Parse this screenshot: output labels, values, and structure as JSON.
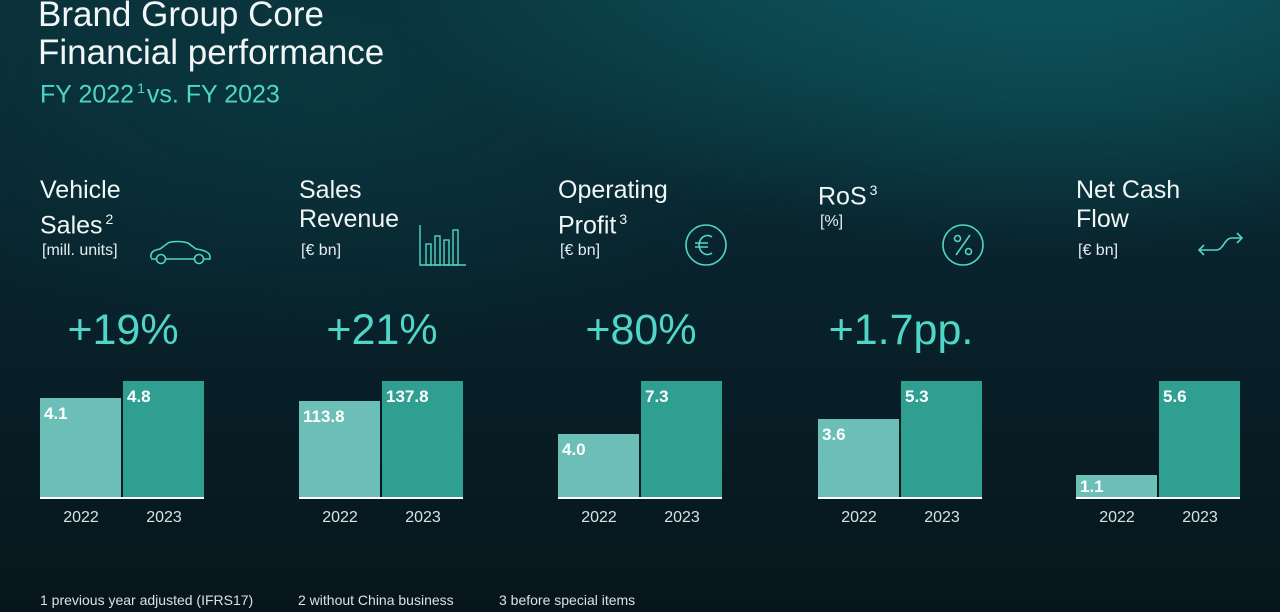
{
  "header": {
    "title_line1": "Brand Group Core",
    "title_line2": "Financial performance",
    "subtitle_prefix": "FY 2022",
    "subtitle_footnote": "1",
    "subtitle_suffix": "vs. FY 2023"
  },
  "chart_data": [
    {
      "type": "bar",
      "title": "Vehicle Sales",
      "title_lines": [
        "Vehicle",
        "Sales"
      ],
      "footnote": "2",
      "unit": "[mill. units]",
      "change": "+19%",
      "icon": "car-icon",
      "categories": [
        "2022",
        "2023"
      ],
      "values": [
        4.1,
        4.8
      ],
      "labels": [
        "4.1",
        "4.8"
      ],
      "ylim": [
        0,
        4.8
      ]
    },
    {
      "type": "bar",
      "title": "Sales Revenue",
      "title_lines": [
        "Sales",
        "Revenue"
      ],
      "footnote": "",
      "unit": "[€ bn]",
      "change": "+21%",
      "icon": "bar-chart-icon",
      "categories": [
        "2022",
        "2023"
      ],
      "values": [
        113.8,
        137.8
      ],
      "labels": [
        "113.8",
        "137.8"
      ],
      "ylim": [
        0,
        137.8
      ]
    },
    {
      "type": "bar",
      "title": "Operating Profit",
      "title_lines": [
        "Operating",
        "Profit"
      ],
      "footnote": "3",
      "unit": "[€ bn]",
      "change": "+80%",
      "icon": "euro-icon",
      "categories": [
        "2022",
        "2023"
      ],
      "values": [
        4.0,
        7.3
      ],
      "labels": [
        "4.0",
        "7.3"
      ],
      "ylim": [
        0,
        7.3
      ]
    },
    {
      "type": "bar",
      "title": "RoS",
      "title_lines": [
        "RoS"
      ],
      "footnote": "3",
      "unit": "[%]",
      "change": "+1.7pp.",
      "icon": "percent-icon",
      "categories": [
        "2022",
        "2023"
      ],
      "values": [
        3.6,
        5.3
      ],
      "labels": [
        "3.6",
        "5.3"
      ],
      "ylim": [
        0,
        5.3
      ]
    },
    {
      "type": "bar",
      "title": "Net Cash Flow",
      "title_lines": [
        "Net Cash",
        "Flow"
      ],
      "footnote": "",
      "unit": "[€ bn]",
      "change": "",
      "icon": "exchange-arrows-icon",
      "categories": [
        "2022",
        "2023"
      ],
      "values": [
        1.1,
        5.6
      ],
      "labels": [
        "1.1",
        "5.6"
      ],
      "ylim": [
        0,
        5.6
      ]
    }
  ],
  "footnotes": [
    "1 previous year adjusted (IFRS17)",
    "2 without China business",
    "3 before special items"
  ],
  "colors": {
    "accent": "#4fd6c8",
    "bar_2022": "#6bbfb6",
    "bar_2023": "#2f9f92",
    "text": "#f2f6f7"
  }
}
